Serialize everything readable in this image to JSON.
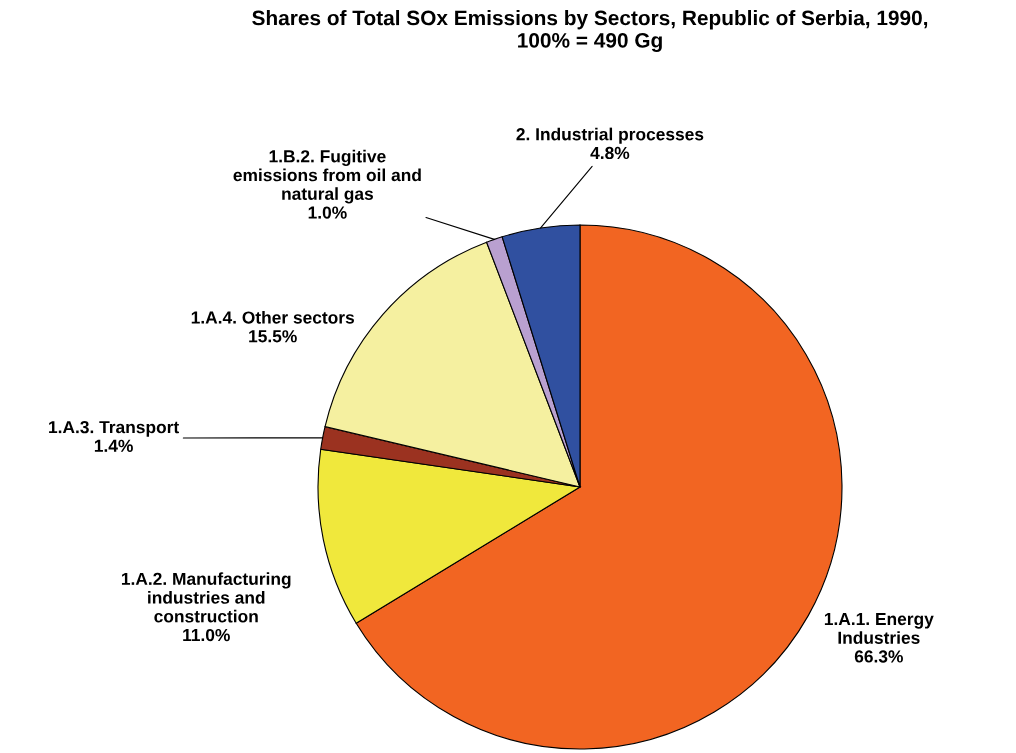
{
  "chart_data": {
    "type": "pie",
    "title": "Shares of Total SOx Emissions by Sectors, Republic of Serbia, 1990,\n100% = 490 Gg",
    "categories": [
      "1.A.1. Energy\nIndustries",
      "1.A.2. Manufacturing\nindustries and\nconstruction",
      "1.A.3. Transport",
      "1.A.4. Other sectors",
      "1.B.2. Fugitive\nemissions from oil and\nnatural gas",
      "2. Industrial processes"
    ],
    "values": [
      66.3,
      11.0,
      1.4,
      15.5,
      1.0,
      4.8
    ],
    "colors": [
      "#f26522",
      "#f0e83c",
      "#9b3220",
      "#f5f0a0",
      "#b9a0d0",
      "#3050a0"
    ],
    "value_labels": [
      "66.3%",
      "11.0%",
      "1.4%",
      "15.5%",
      "1.0%",
      "4.8%"
    ],
    "legend": false
  }
}
